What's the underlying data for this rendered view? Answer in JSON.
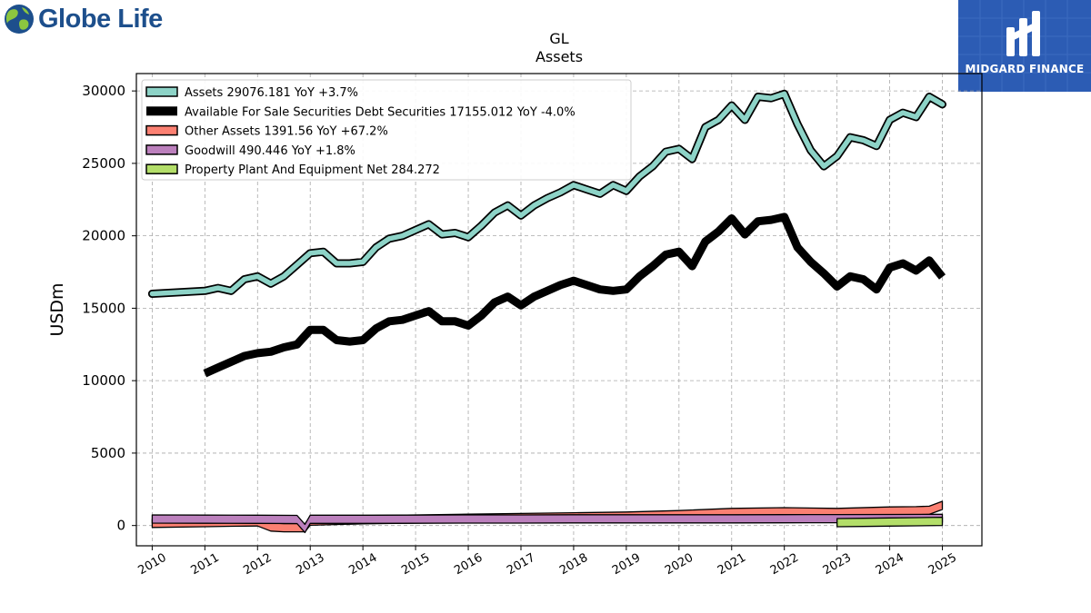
{
  "brand": {
    "logo_text": "Globe Life",
    "badge_text": "MIDGARD FINANCE",
    "badge_color": "#2c5cb4",
    "logo_color": "#1d4f8c"
  },
  "chart_data": {
    "type": "line",
    "title": "GL",
    "subtitle": "Assets",
    "ylabel": "USDm",
    "xlim": [
      2009.7,
      2025.75
    ],
    "ylim": [
      -1400,
      31200
    ],
    "yticks": [
      0,
      5000,
      10000,
      15000,
      20000,
      25000,
      30000
    ],
    "xticks": [
      2010,
      2011,
      2012,
      2013,
      2014,
      2015,
      2016,
      2017,
      2018,
      2019,
      2020,
      2021,
      2022,
      2023,
      2024,
      2025
    ],
    "grid": true,
    "legend_position": "top-left",
    "series": [
      {
        "name": "Assets",
        "legend": "Assets  29076.181 YoY +3.7%",
        "color": "#8dd3c7",
        "style": "band",
        "x": [
          2010.0,
          2011.0,
          2011.25,
          2011.5,
          2011.75,
          2012.0,
          2012.25,
          2012.5,
          2012.75,
          2013.0,
          2013.25,
          2013.5,
          2013.75,
          2014.0,
          2014.25,
          2014.5,
          2014.75,
          2015.0,
          2015.25,
          2015.5,
          2015.75,
          2016.0,
          2016.25,
          2016.5,
          2016.75,
          2017.0,
          2017.25,
          2017.5,
          2017.75,
          2018.0,
          2018.25,
          2018.5,
          2018.75,
          2019.0,
          2019.25,
          2019.5,
          2019.75,
          2020.0,
          2020.25,
          2020.5,
          2020.75,
          2021.0,
          2021.25,
          2021.5,
          2021.75,
          2022.0,
          2022.25,
          2022.5,
          2022.75,
          2023.0,
          2023.25,
          2023.5,
          2023.75,
          2024.0,
          2024.25,
          2024.5,
          2024.75,
          2025.0
        ],
        "y": [
          16000,
          16200,
          16400,
          16200,
          17000,
          17200,
          16700,
          17200,
          18000,
          18800,
          18900,
          18100,
          18100,
          18200,
          19200,
          19800,
          20000,
          20400,
          20800,
          20100,
          20200,
          19900,
          20700,
          21600,
          22100,
          21400,
          22100,
          22600,
          23000,
          23500,
          23200,
          22900,
          23500,
          23100,
          24100,
          24800,
          25800,
          26000,
          25300,
          27500,
          28000,
          29000,
          28000,
          29600,
          29500,
          29800,
          27700,
          25900,
          24800,
          25500,
          26800,
          26600,
          26200,
          28000,
          28500,
          28200,
          29600,
          29076
        ]
      },
      {
        "name": "Available For Sale Securities Debt Securities",
        "legend": "Available For Sale Securities Debt Securities  17155.012 YoY -4.0%",
        "color": "#000000",
        "style": "thick",
        "x": [
          2011.0,
          2011.25,
          2011.5,
          2011.75,
          2012.0,
          2012.25,
          2012.5,
          2012.75,
          2013.0,
          2013.25,
          2013.5,
          2013.75,
          2014.0,
          2014.25,
          2014.5,
          2014.75,
          2015.0,
          2015.25,
          2015.5,
          2015.75,
          2016.0,
          2016.25,
          2016.5,
          2016.75,
          2017.0,
          2017.25,
          2017.5,
          2017.75,
          2018.0,
          2018.25,
          2018.5,
          2018.75,
          2019.0,
          2019.25,
          2019.5,
          2019.75,
          2020.0,
          2020.25,
          2020.5,
          2020.75,
          2021.0,
          2021.25,
          2021.5,
          2021.75,
          2022.0,
          2022.25,
          2022.5,
          2022.75,
          2023.0,
          2023.25,
          2023.5,
          2023.75,
          2024.0,
          2024.25,
          2024.5,
          2024.75,
          2025.0
        ],
        "y": [
          10500,
          10900,
          11300,
          11700,
          11900,
          12000,
          12300,
          12500,
          13500,
          13500,
          12800,
          12700,
          12800,
          13600,
          14100,
          14200,
          14500,
          14800,
          14100,
          14100,
          13800,
          14500,
          15400,
          15800,
          15200,
          15800,
          16200,
          16600,
          16900,
          16600,
          16300,
          16200,
          16300,
          17200,
          17900,
          18700,
          18900,
          17900,
          19600,
          20300,
          21200,
          20100,
          21000,
          21100,
          21300,
          19200,
          18200,
          17400,
          16500,
          17200,
          17000,
          16300,
          17800,
          18100,
          17600,
          18300,
          17155
        ]
      },
      {
        "name": "Other Assets",
        "legend": "Other Assets  1391.56 YoY +67.2%",
        "color": "#fb8072",
        "style": "area",
        "x": [
          2010.0,
          2011.0,
          2011.5,
          2012.0,
          2012.25,
          2012.5,
          2012.75,
          2012.9,
          2013.0,
          2014.0,
          2015.0,
          2016.0,
          2017.0,
          2018.0,
          2019.0,
          2020.0,
          2021.0,
          2022.0,
          2023.0,
          2024.0,
          2024.5,
          2024.75,
          2025.0
        ],
        "y": [
          150,
          200,
          230,
          250,
          -100,
          -150,
          -150,
          -150,
          300,
          400,
          450,
          500,
          550,
          600,
          650,
          750,
          900,
          950,
          900,
          1000,
          1020,
          1050,
          1391.56
        ]
      },
      {
        "name": "Goodwill",
        "legend": "Goodwill  490.446 YoY +1.8%",
        "color": "#bc80bd",
        "style": "area",
        "x": [
          2010.0,
          2011.0,
          2012.0,
          2012.75,
          2012.9,
          2013.0,
          2014.0,
          2015.0,
          2016.0,
          2017.0,
          2018.0,
          2019.0,
          2020.0,
          2021.0,
          2022.0,
          2023.0,
          2024.0,
          2025.0
        ],
        "y": [
          450,
          440,
          430,
          420,
          -200,
          430,
          430,
          440,
          450,
          450,
          460,
          460,
          460,
          460,
          470,
          475,
          480,
          490.446
        ]
      },
      {
        "name": "Property Plant And Equipment Net",
        "legend": "Property Plant And Equipment Net  284.272",
        "color": "#b3de69",
        "style": "area",
        "x": [
          2023.0,
          2023.5,
          2024.0,
          2024.5,
          2025.0
        ],
        "y": [
          200,
          220,
          240,
          260,
          284.272
        ]
      }
    ]
  }
}
